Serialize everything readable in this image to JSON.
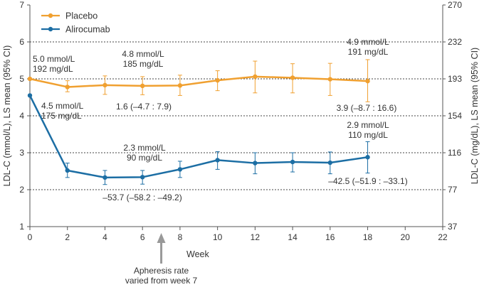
{
  "chart_data": {
    "type": "line",
    "title": "",
    "xlabel": "Week",
    "ylabel_left": "LDL-C (mmol/L), LS mean (95% CI)",
    "ylabel_right": "LDL-C (mg/dL), LS mean (95% CI)",
    "xlim": [
      0,
      22
    ],
    "ylim": [
      1,
      7
    ],
    "x_ticks": [
      0,
      2,
      4,
      6,
      8,
      10,
      12,
      14,
      16,
      18,
      20,
      22
    ],
    "y_ticks": [
      1,
      2,
      3,
      4,
      5,
      6,
      7
    ],
    "y2_ticks": [
      "37",
      "77",
      "116",
      "154",
      "193",
      "232",
      "270"
    ],
    "gridlines_dotted_at": [
      2,
      3,
      4,
      5,
      6
    ],
    "legend": {
      "position": "top-left"
    },
    "x": [
      0,
      2,
      4,
      6,
      8,
      10,
      12,
      14,
      16,
      18
    ],
    "series": [
      {
        "name": "Placebo",
        "color": "#f0a030",
        "values": [
          5.0,
          4.78,
          4.83,
          4.81,
          4.82,
          4.96,
          5.06,
          5.03,
          4.99,
          4.94
        ],
        "ci_low": [
          5.0,
          4.65,
          4.58,
          4.57,
          4.55,
          4.68,
          4.62,
          4.62,
          4.55,
          4.38
        ],
        "ci_high": [
          5.0,
          4.95,
          5.08,
          5.06,
          5.1,
          5.22,
          5.48,
          5.41,
          5.42,
          5.52
        ]
      },
      {
        "name": "Alirocumab",
        "color": "#1c6ea4",
        "values": [
          4.55,
          2.52,
          2.33,
          2.34,
          2.55,
          2.8,
          2.72,
          2.75,
          2.73,
          2.88
        ],
        "ci_low": [
          4.55,
          2.33,
          2.14,
          2.15,
          2.33,
          2.55,
          2.43,
          2.48,
          2.43,
          2.45
        ],
        "ci_high": [
          4.55,
          2.72,
          2.52,
          2.52,
          2.77,
          3.03,
          3.0,
          3.0,
          3.02,
          3.3
        ]
      }
    ],
    "annotations": [
      {
        "lines": [
          "5.0 mmol/L",
          "192 mg/dL"
        ]
      },
      {
        "lines": [
          "4.8 mmol/L",
          "185 mg/dL"
        ]
      },
      {
        "lines": [
          "4.9 mmol/L",
          "191 mg/dL"
        ]
      },
      {
        "lines": [
          "4.5 mmol/L",
          "175 mg/dL"
        ]
      },
      {
        "lines": [
          "1.6 (–4.7 : 7.9)"
        ]
      },
      {
        "lines": [
          "3.9 (–8.7 : 16.6)"
        ]
      },
      {
        "lines": [
          "2.9 mmol/L",
          "110 mg/dL"
        ]
      },
      {
        "lines": [
          "2.3 mmol/L",
          "90 mg/dL"
        ]
      },
      {
        "lines": [
          "–53.7 (–58.2 : –49.2)"
        ]
      },
      {
        "lines": [
          "–42.5 (–51.9 : –33.1)"
        ]
      },
      {
        "lines": [
          "Apheresis rate",
          "varied from week 7"
        ],
        "arrow_at_week": 7
      }
    ]
  }
}
